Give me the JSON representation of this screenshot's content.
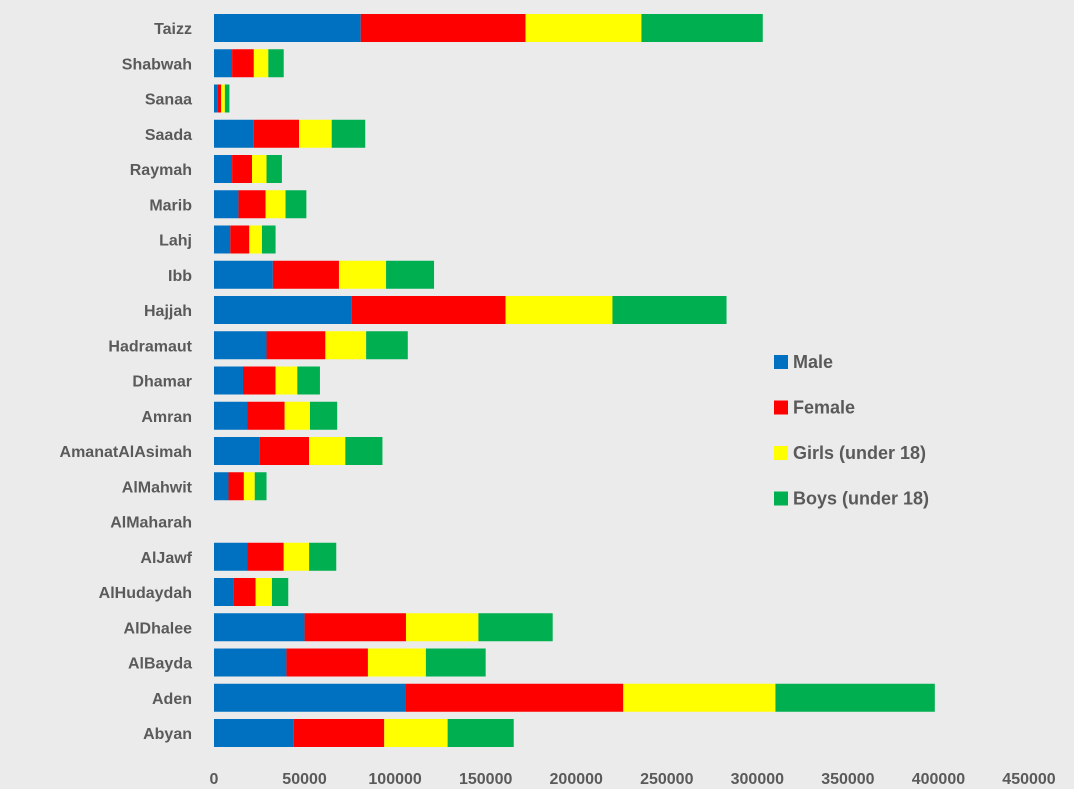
{
  "chart_data": {
    "type": "bar",
    "orientation": "horizontal",
    "stacked": true,
    "categories": [
      "Taizz",
      "Shabwah",
      "Sanaa",
      "Saada",
      "Raymah",
      "Marib",
      "Lahj",
      "Ibb",
      "Hajjah",
      "Hadramaut",
      "Dhamar",
      "Amran",
      "AmanatAlAsimah",
      "AlMahwit",
      "AlMaharah",
      "AlJawf",
      "AlHudaydah",
      "AlDhalee",
      "AlBayda",
      "Aden",
      "Abyan"
    ],
    "series": [
      {
        "name": "Male",
        "color": "#0070c0",
        "values": [
          81000,
          10000,
          2000,
          22000,
          10000,
          13500,
          9000,
          32500,
          76000,
          29000,
          16000,
          18500,
          25000,
          8000,
          0,
          18500,
          11000,
          50000,
          40000,
          106000,
          44000
        ]
      },
      {
        "name": "Female",
        "color": "#ff0000",
        "values": [
          91000,
          12000,
          2000,
          25000,
          11000,
          15000,
          10500,
          36500,
          85000,
          32500,
          18000,
          20500,
          27500,
          8500,
          0,
          20000,
          12000,
          56000,
          45000,
          120000,
          50000
        ]
      },
      {
        "name": "Girls (under 18)",
        "color": "#ffff00",
        "values": [
          64000,
          8000,
          2000,
          18000,
          8000,
          11000,
          7000,
          26000,
          59000,
          22500,
          12000,
          14000,
          20000,
          6000,
          0,
          14000,
          9000,
          40000,
          32000,
          84000,
          35000
        ]
      },
      {
        "name": "Boys (under 18)",
        "color": "#00b050",
        "values": [
          67000,
          8500,
          2500,
          18500,
          8500,
          11500,
          7500,
          26500,
          63000,
          23000,
          12500,
          15000,
          20500,
          6500,
          0,
          15000,
          9000,
          41000,
          33000,
          88000,
          36500
        ]
      }
    ],
    "xlim": [
      0,
      450000
    ],
    "xticks": [
      "0",
      "50000",
      "100000",
      "150000",
      "200000",
      "250000",
      "300000",
      "350000",
      "400000",
      "450000"
    ],
    "grid": false,
    "legend_position": "right"
  }
}
